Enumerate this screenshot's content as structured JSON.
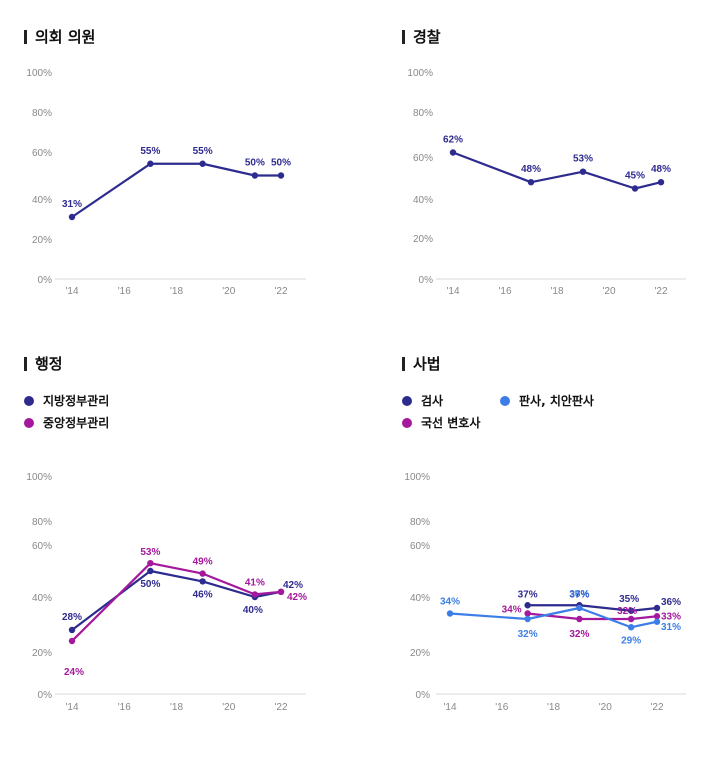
{
  "colors": {
    "navy": "#2e2b8f",
    "magenta": "#a3189c",
    "blue": "#3d7ee6",
    "axis": "#888888",
    "tick": "#888888"
  },
  "x_ticks": [
    "'14",
    "'16",
    "'18",
    "'20",
    "'22"
  ],
  "chart_data": [
    {
      "id": "assembly",
      "type": "line",
      "title": "의회 의원",
      "x_ticks": [
        "'14",
        "'16",
        "'18",
        "'20",
        "'22"
      ],
      "y_ticks": [
        "0%",
        "20%",
        "40%",
        "60%",
        "80%",
        "100%"
      ],
      "ylim": [
        0,
        100
      ],
      "series": [
        {
          "color": "#2e2b8f",
          "points": [
            {
              "x": 2014,
              "y": 31,
              "label": "31%"
            },
            {
              "x": 2017,
              "y": 55,
              "label": "55%"
            },
            {
              "x": 2019,
              "y": 55,
              "label": "55%"
            },
            {
              "x": 2021,
              "y": 50,
              "label": "50%"
            },
            {
              "x": 2022,
              "y": 50,
              "label": "50%"
            }
          ]
        }
      ]
    },
    {
      "id": "police",
      "type": "line",
      "title": "경찰",
      "x_ticks": [
        "'14",
        "'16",
        "'18",
        "'20",
        "'22"
      ],
      "y_ticks": [
        "0%",
        "20%",
        "40%",
        "60%",
        "80%",
        "100%"
      ],
      "ylim": [
        0,
        100
      ],
      "series": [
        {
          "color": "#2e2b8f",
          "points": [
            {
              "x": 2014,
              "y": 62,
              "label": "62%"
            },
            {
              "x": 2017,
              "y": 48,
              "label": "48%"
            },
            {
              "x": 2019,
              "y": 53,
              "label": "53%"
            },
            {
              "x": 2021,
              "y": 45,
              "label": "45%"
            },
            {
              "x": 2022,
              "y": 48,
              "label": "48%"
            }
          ]
        }
      ]
    },
    {
      "id": "admin",
      "type": "line",
      "title": "행정",
      "x_ticks": [
        "'14",
        "'16",
        "'18",
        "'20",
        "'22"
      ],
      "y_ticks": [
        "0%",
        "20%",
        "40%",
        "60%",
        "80%",
        "100%"
      ],
      "ylim": [
        0,
        100
      ],
      "legend": [
        "지방정부관리",
        "중앙정부관리"
      ],
      "series": [
        {
          "name": "지방정부관리",
          "color": "#2e2b8f",
          "points": [
            {
              "x": 2014,
              "y": 28,
              "label": "28%"
            },
            {
              "x": 2017,
              "y": 50,
              "label": "50%"
            },
            {
              "x": 2019,
              "y": 46,
              "label": "46%"
            },
            {
              "x": 2021,
              "y": 40,
              "label": "40%"
            },
            {
              "x": 2022,
              "y": 42,
              "label": "42%"
            }
          ]
        },
        {
          "name": "중앙정부관리",
          "color": "#a3189c",
          "points": [
            {
              "x": 2014,
              "y": 24,
              "label": "24%"
            },
            {
              "x": 2017,
              "y": 53,
              "label": "53%"
            },
            {
              "x": 2019,
              "y": 49,
              "label": "49%"
            },
            {
              "x": 2021,
              "y": 41,
              "label": "41%"
            },
            {
              "x": 2022,
              "y": 42,
              "label": "42%"
            }
          ]
        }
      ]
    },
    {
      "id": "judiciary",
      "type": "line",
      "title": "사법",
      "x_ticks": [
        "'14",
        "'16",
        "'18",
        "'20",
        "'22"
      ],
      "y_ticks": [
        "0%",
        "20%",
        "40%",
        "60%",
        "80%",
        "100%"
      ],
      "ylim": [
        0,
        100
      ],
      "legend": [
        "검사",
        "판사, 치안판사",
        "국선 변호사"
      ],
      "series": [
        {
          "name": "검사",
          "color": "#2e2b8f",
          "points": [
            {
              "x": 2017,
              "y": 37,
              "label": "37%"
            },
            {
              "x": 2019,
              "y": 37,
              "label": "37%"
            },
            {
              "x": 2021,
              "y": 35,
              "label": "35%"
            },
            {
              "x": 2022,
              "y": 36,
              "label": "36%"
            }
          ]
        },
        {
          "name": "국선 변호사",
          "color": "#a3189c",
          "points": [
            {
              "x": 2017,
              "y": 34,
              "label": "34%"
            },
            {
              "x": 2019,
              "y": 32,
              "label": "32%"
            },
            {
              "x": 2021,
              "y": 32,
              "label": "32%"
            },
            {
              "x": 2022,
              "y": 33,
              "label": "33%"
            }
          ]
        },
        {
          "name": "판사, 치안판사",
          "color": "#3d7ee6",
          "points": [
            {
              "x": 2014,
              "y": 34,
              "label": "34%"
            },
            {
              "x": 2017,
              "y": 32,
              "label": "32%"
            },
            {
              "x": 2019,
              "y": 36,
              "label": "36%"
            },
            {
              "x": 2021,
              "y": 29,
              "label": "29%"
            },
            {
              "x": 2022,
              "y": 31,
              "label": "31%"
            }
          ]
        }
      ]
    }
  ]
}
